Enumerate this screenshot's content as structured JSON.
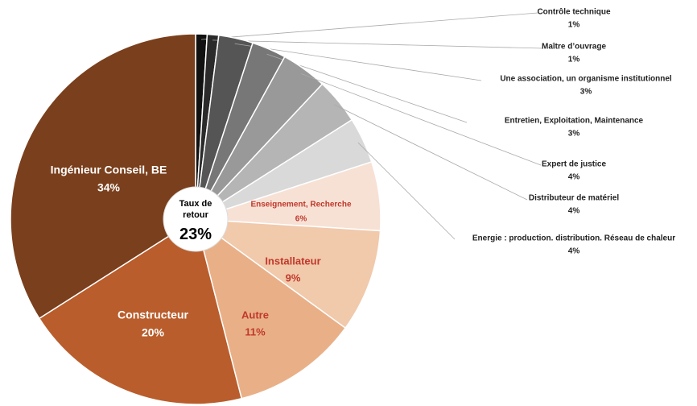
{
  "chart_data": {
    "type": "pie",
    "center_label": "Taux de retour",
    "center_value": "23%",
    "categories": [
      "Contrôle technique",
      "Maître d’ouvrage",
      "Une association, un organisme institutionnel",
      "Entretien, Exploitation, Maintenance",
      "Expert de justice",
      "Distributeur de matériel",
      "Energie : production. distribution. Réseau de chaleur",
      "Enseignement, Recherche",
      "Installateur",
      "Autre",
      "Constructeur",
      "Ingénieur Conseil, BE"
    ],
    "values": [
      1,
      1,
      3,
      3,
      4,
      4,
      4,
      6,
      9,
      11,
      20,
      34
    ],
    "value_labels": [
      "1%",
      "1%",
      "3%",
      "3%",
      "4%",
      "4%",
      "4%",
      "6%",
      "9%",
      "11%",
      "20%",
      "34%"
    ],
    "colors": [
      "#111111",
      "#2b2b2b",
      "#555555",
      "#777777",
      "#999999",
      "#b5b5b5",
      "#d9d9d9",
      "#f7e1d5",
      "#f1c9ab",
      "#e9b088",
      "#b95d2c",
      "#7a3f1c"
    ]
  }
}
